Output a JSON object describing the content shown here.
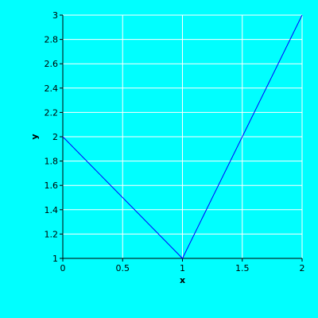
{
  "colors": {
    "background": "#00ffff",
    "grid": "#ffffff",
    "axis": "#000000",
    "line": "#0000ff"
  },
  "chart_data": {
    "type": "line",
    "title": "",
    "xlabel": "x",
    "ylabel": "y",
    "xlim": [
      0,
      2
    ],
    "ylim": [
      1,
      3
    ],
    "grid": true,
    "x_ticks": [
      0,
      0.5,
      1,
      1.5,
      2
    ],
    "x_tick_labels": [
      "0",
      "0.5",
      "1",
      "1.5",
      "2"
    ],
    "y_ticks": [
      1,
      1.2,
      1.4,
      1.6,
      1.8,
      2,
      2.2,
      2.4,
      2.6,
      2.8,
      3
    ],
    "y_tick_labels": [
      "1",
      "1.2",
      "1.4",
      "1.6",
      "1.8",
      "2",
      "2.2",
      "2.4",
      "2.6",
      "2.8",
      "3"
    ],
    "series": [
      {
        "x": [
          0,
          1,
          2
        ],
        "y": [
          2,
          1,
          3
        ]
      }
    ]
  }
}
